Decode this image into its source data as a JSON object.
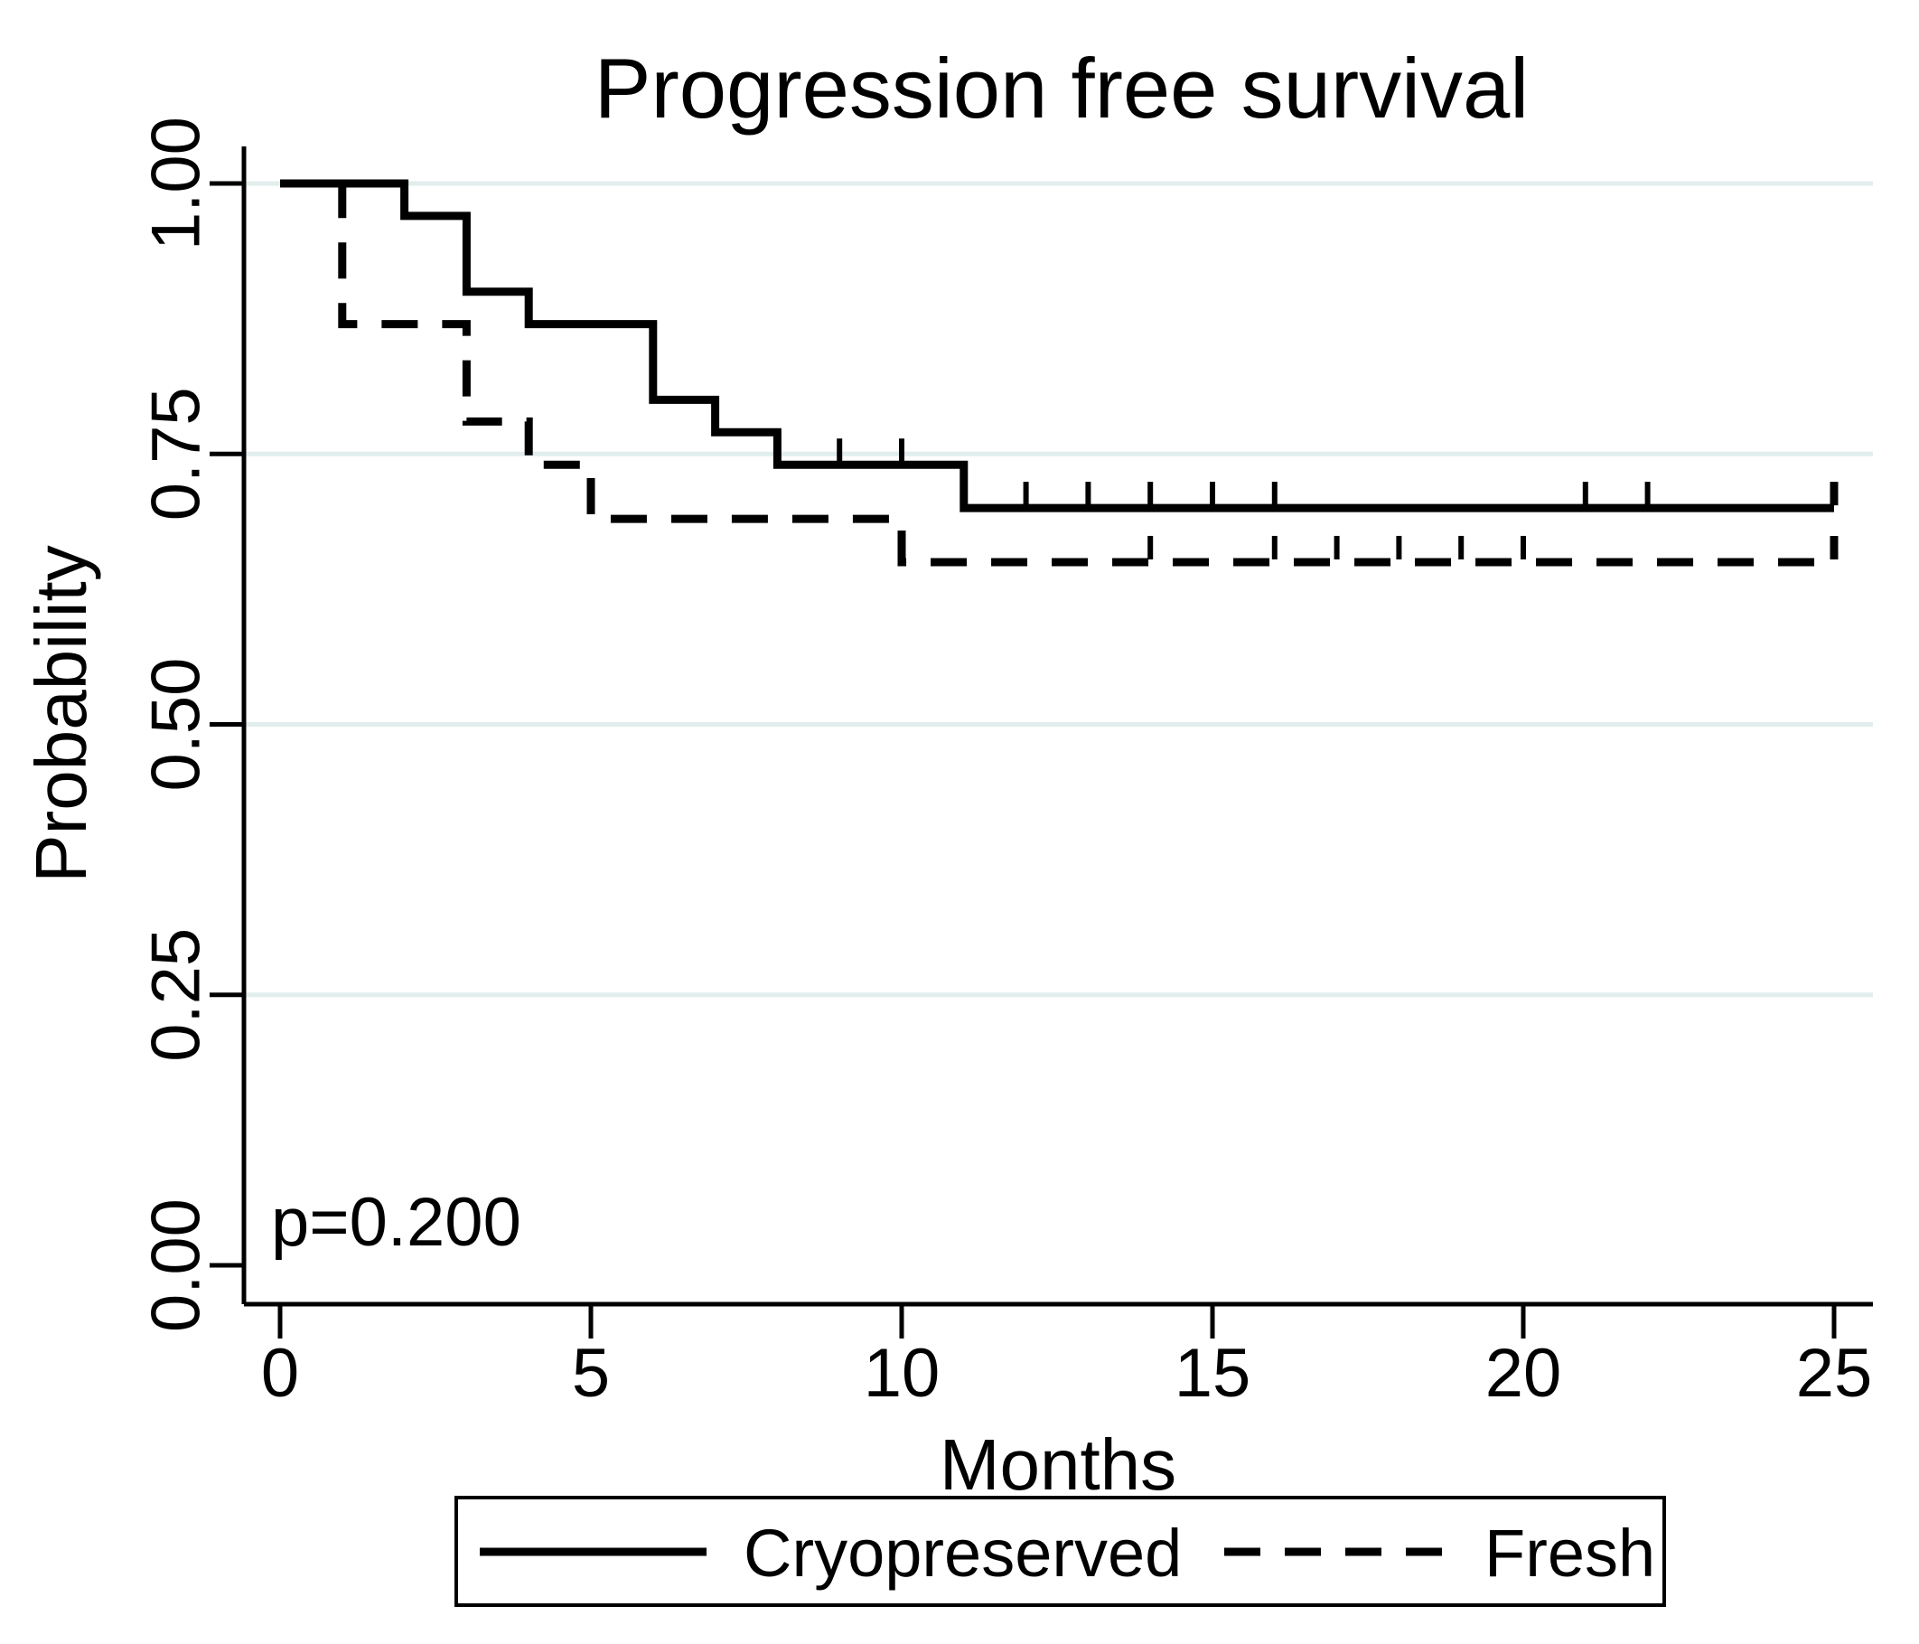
{
  "chart_data": {
    "type": "line",
    "chart_kind": "kaplan-meier-step",
    "title": "Progression free survival",
    "xlabel": "Months",
    "ylabel": "Probability",
    "annotation": "p=0.200",
    "xlim": [
      0,
      25
    ],
    "ylim": [
      0,
      1
    ],
    "x_ticks": [
      {
        "v": 0,
        "label": "0"
      },
      {
        "v": 5,
        "label": "5"
      },
      {
        "v": 10,
        "label": "10"
      },
      {
        "v": 15,
        "label": "15"
      },
      {
        "v": 20,
        "label": "20"
      },
      {
        "v": 25,
        "label": "25"
      }
    ],
    "y_ticks": [
      {
        "v": 0.0,
        "label": "0.00"
      },
      {
        "v": 0.25,
        "label": "0.25"
      },
      {
        "v": 0.5,
        "label": "0.50"
      },
      {
        "v": 0.75,
        "label": "0.75"
      },
      {
        "v": 1.0,
        "label": "1.00"
      }
    ],
    "grid_y": [
      0.25,
      0.5,
      0.75,
      1.0
    ],
    "grid_on": true,
    "legend": {
      "position": "bottom-center",
      "entries": [
        {
          "label": "Cryopreserved",
          "line": "solid"
        },
        {
          "label": "Fresh",
          "line": "dashed"
        }
      ]
    },
    "series": [
      {
        "name": "Cryopreserved",
        "line": "solid",
        "steps": [
          [
            0,
            1.0
          ],
          [
            2,
            0.97
          ],
          [
            3,
            0.9
          ],
          [
            4,
            0.87
          ],
          [
            6,
            0.8
          ],
          [
            7,
            0.77
          ],
          [
            8,
            0.74
          ],
          [
            11,
            0.7
          ]
        ],
        "end_x": 25,
        "censor_marks": [
          [
            9,
            0.74
          ],
          [
            10,
            0.74
          ],
          [
            12,
            0.7
          ],
          [
            13,
            0.7
          ],
          [
            14,
            0.7
          ],
          [
            15,
            0.7
          ],
          [
            16,
            0.7
          ],
          [
            21,
            0.7
          ],
          [
            22,
            0.7
          ]
        ],
        "end_censor": true
      },
      {
        "name": "Fresh",
        "line": "dashed",
        "steps": [
          [
            0,
            1.0
          ],
          [
            1,
            0.87
          ],
          [
            3,
            0.78
          ],
          [
            4,
            0.74
          ],
          [
            5,
            0.69
          ],
          [
            10,
            0.65
          ]
        ],
        "end_x": 25,
        "censor_marks": [
          [
            14,
            0.65
          ],
          [
            16,
            0.65
          ],
          [
            17,
            0.65
          ],
          [
            18,
            0.65
          ],
          [
            19,
            0.65
          ],
          [
            20,
            0.65
          ]
        ],
        "end_censor": true
      }
    ]
  },
  "colors": {
    "curve": "#000000",
    "axis": "#000000",
    "grid": "#e2eeee",
    "text": "#000000",
    "background": "#ffffff",
    "legend_border": "#000000"
  }
}
